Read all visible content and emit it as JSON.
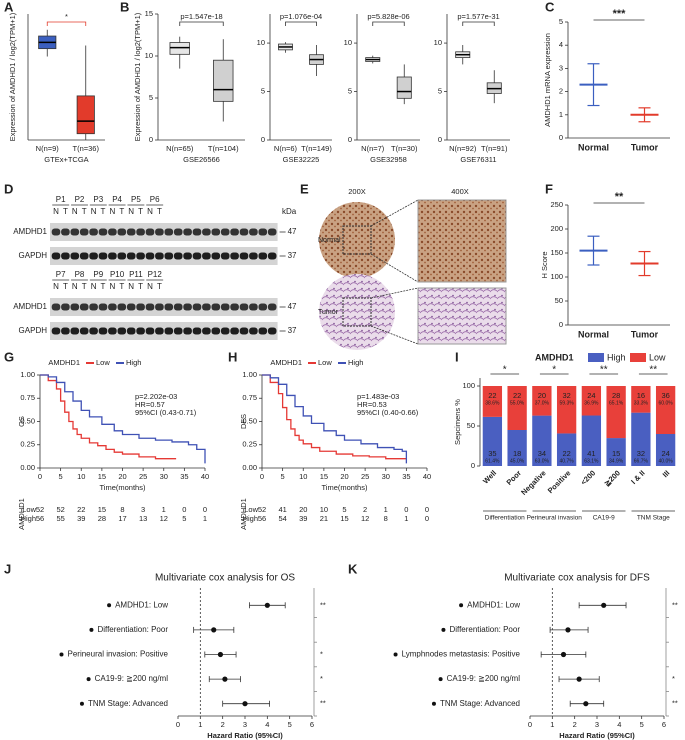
{
  "chart_data": [
    {
      "type": "box",
      "panel": "A",
      "ylabel": "Expression of AMDHD1 / log2(TPM+1)",
      "xlabel": "GTEx+TCGA",
      "categories": [
        "N(n=9)",
        "T(n=36)"
      ],
      "box_colors": [
        "#3b5fc0",
        "#e23b2b"
      ],
      "ylim": [
        0,
        8
      ],
      "boxes": [
        {
          "low": 5.3,
          "q1": 5.8,
          "median": 6.2,
          "q3": 6.6,
          "high": 7.0
        },
        {
          "low": 0.0,
          "q1": 0.4,
          "median": 1.2,
          "q3": 2.8,
          "high": 6.0
        }
      ],
      "annotation": "*",
      "annotation_color": "#e23b2b"
    },
    {
      "type": "box",
      "panel": "B",
      "ylabel": "Expression of AMDHD1 / log2(TPM+1)",
      "xlabel": "GSE26566",
      "categories": [
        "N(n=65)",
        "T(n=104)"
      ],
      "box_colors": [
        "#e6e6e6",
        "#d0d0d0"
      ],
      "ylim": [
        0,
        15
      ],
      "yticks": [
        0,
        5,
        10,
        15
      ],
      "boxes": [
        {
          "low": 8.5,
          "q1": 10.2,
          "median": 11.0,
          "q3": 11.6,
          "high": 12.3
        },
        {
          "low": 2.2,
          "q1": 4.6,
          "median": 6.0,
          "q3": 9.5,
          "high": 12.0
        }
      ],
      "annotation": "p=1.547e-18"
    },
    {
      "type": "box",
      "xlabel": "GSE32225",
      "categories": [
        "N(n=6)",
        "T(n=149)"
      ],
      "box_colors": [
        "#e6e6e6",
        "#d0d0d0"
      ],
      "ylim": [
        0,
        13
      ],
      "yticks": [
        0,
        5,
        10
      ],
      "boxes": [
        {
          "low": 9.0,
          "q1": 9.3,
          "median": 9.6,
          "q3": 9.9,
          "high": 10.1
        },
        {
          "low": 6.6,
          "q1": 7.8,
          "median": 8.3,
          "q3": 8.8,
          "high": 9.8
        }
      ],
      "annotation": "p=1.076e-04"
    },
    {
      "type": "box",
      "xlabel": "GSE32958",
      "categories": [
        "N(n=7)",
        "T(n=30)"
      ],
      "box_colors": [
        "#e6e6e6",
        "#d0d0d0"
      ],
      "ylim": [
        0,
        13
      ],
      "yticks": [
        0,
        5,
        10
      ],
      "boxes": [
        {
          "low": 7.9,
          "q1": 8.1,
          "median": 8.3,
          "q3": 8.5,
          "high": 8.7
        },
        {
          "low": 3.7,
          "q1": 4.3,
          "median": 5.0,
          "q3": 6.5,
          "high": 7.8
        }
      ],
      "annotation": "p=5.828e-06"
    },
    {
      "type": "box",
      "xlabel": "GSE76311",
      "categories": [
        "N(n=92)",
        "T(n=91)"
      ],
      "box_colors": [
        "#e6e6e6",
        "#d0d0d0"
      ],
      "ylim": [
        0,
        13
      ],
      "yticks": [
        0,
        5,
        10
      ],
      "boxes": [
        {
          "low": 7.8,
          "q1": 8.5,
          "median": 8.8,
          "q3": 9.1,
          "high": 9.8
        },
        {
          "low": 3.8,
          "q1": 4.8,
          "median": 5.3,
          "q3": 5.9,
          "high": 7.2
        }
      ],
      "annotation": "p=1.577e-31"
    },
    {
      "type": "dot",
      "panel": "C",
      "ylabel": "AMDHD1 mRNA expression",
      "categories": [
        "Normal",
        "Tumor"
      ],
      "colors": [
        "#3b5fc0",
        "#e23b2b"
      ],
      "means": [
        2.3,
        1.0
      ],
      "sds": [
        0.9,
        0.3
      ],
      "ylim": [
        0,
        5
      ],
      "yticks": [
        0,
        1,
        2,
        3,
        4,
        5
      ],
      "annotation": "***"
    },
    {
      "type": "blot",
      "panel": "D",
      "groups": [
        {
          "samples": [
            "P1",
            "P2",
            "P3",
            "P4",
            "P5",
            "P6"
          ]
        },
        {
          "samples": [
            "P7",
            "P8",
            "P9",
            "P10",
            "P11",
            "P12"
          ]
        }
      ],
      "lanes": [
        "N",
        "T"
      ],
      "proteins": [
        "AMDHD1",
        "GAPDH"
      ],
      "unit": "kDa",
      "sizes": [
        47,
        37
      ]
    },
    {
      "type": "image",
      "panel": "E",
      "magnifications": [
        "200X",
        "400X"
      ],
      "rows": [
        "Normal",
        "Tumor"
      ]
    },
    {
      "type": "dot",
      "panel": "F",
      "ylabel": "H Score",
      "categories": [
        "Normal",
        "Tumor"
      ],
      "colors": [
        "#3b5fc0",
        "#e23b2b"
      ],
      "means": [
        155,
        128
      ],
      "sds": [
        30,
        25
      ],
      "ylim": [
        0,
        250
      ],
      "yticks": [
        0,
        50,
        100,
        150,
        200,
        250
      ],
      "annotation": "**"
    },
    {
      "type": "km",
      "panel": "G",
      "ylabel": "OS",
      "xlabel": "Time(months)",
      "legend_title": "AMDHD1",
      "xlim": [
        0,
        40
      ],
      "xticks": [
        0,
        5,
        10,
        15,
        20,
        25,
        30,
        35,
        40
      ],
      "ylim": [
        0,
        1
      ],
      "yticks": [
        {
          "value": 0,
          "label": "0.00"
        },
        {
          "value": 0.25,
          "label": "0.25"
        },
        {
          "value": 0.5,
          "label": "0.50"
        },
        {
          "value": 0.75,
          "label": "0.75"
        },
        {
          "value": 1,
          "label": "1.00"
        }
      ],
      "stats": [
        "p=2.202e-03",
        "HR=0.57",
        "95%CI (0.43-0.71)"
      ],
      "series": [
        {
          "name": "Low",
          "color": "#e53935",
          "x": [
            0,
            2,
            4,
            5,
            6,
            7,
            8,
            9,
            10,
            12,
            14,
            16,
            18,
            20,
            24,
            28,
            33
          ],
          "y": [
            1,
            0.94,
            0.85,
            0.72,
            0.6,
            0.5,
            0.42,
            0.36,
            0.32,
            0.27,
            0.24,
            0.2,
            0.17,
            0.15,
            0.12,
            0.1,
            0.1
          ],
          "at_risk": [
            52,
            52,
            22,
            15,
            8,
            3,
            1,
            0,
            0
          ]
        },
        {
          "name": "High",
          "color": "#3f51b5",
          "x": [
            0,
            2,
            4,
            6,
            8,
            10,
            12,
            15,
            18,
            20,
            24,
            28,
            32,
            36,
            38,
            40
          ],
          "y": [
            1,
            0.98,
            0.92,
            0.82,
            0.72,
            0.62,
            0.55,
            0.47,
            0.4,
            0.36,
            0.32,
            0.3,
            0.28,
            0.25,
            0.2,
            0.05
          ],
          "at_risk": [
            56,
            55,
            39,
            28,
            17,
            13,
            12,
            5,
            1
          ]
        }
      ]
    },
    {
      "type": "km",
      "panel": "H",
      "ylabel": "DFS",
      "xlabel": "Time(months)",
      "legend_title": "AMDHD1",
      "xlim": [
        0,
        40
      ],
      "xticks": [
        0,
        5,
        10,
        15,
        20,
        25,
        30,
        35,
        40
      ],
      "ylim": [
        0,
        1
      ],
      "yticks": [
        {
          "value": 0,
          "label": "0.00"
        },
        {
          "value": 0.25,
          "label": "0.25"
        },
        {
          "value": 0.5,
          "label": "0.50"
        },
        {
          "value": 0.75,
          "label": "0.75"
        },
        {
          "value": 1,
          "label": "1.00"
        }
      ],
      "stats": [
        "p=1.483e-03",
        "HR=0.53",
        "95%CI (0.40-0.66)"
      ],
      "series": [
        {
          "name": "Low",
          "color": "#e53935",
          "x": [
            0,
            2,
            4,
            5,
            6,
            7,
            8,
            9,
            10,
            12,
            14,
            18,
            22,
            26,
            30,
            35
          ],
          "y": [
            1,
            0.92,
            0.8,
            0.65,
            0.52,
            0.42,
            0.35,
            0.3,
            0.26,
            0.22,
            0.18,
            0.15,
            0.13,
            0.12,
            0.1,
            0.1
          ],
          "at_risk": [
            52,
            41,
            20,
            10,
            5,
            2,
            1,
            0,
            0
          ]
        },
        {
          "name": "High",
          "color": "#3f51b5",
          "x": [
            0,
            2,
            4,
            6,
            8,
            10,
            12,
            15,
            18,
            20,
            24,
            28,
            32,
            34,
            35
          ],
          "y": [
            1,
            0.97,
            0.9,
            0.78,
            0.66,
            0.56,
            0.48,
            0.4,
            0.35,
            0.3,
            0.26,
            0.22,
            0.2,
            0.18,
            0.05
          ],
          "at_risk": [
            56,
            54,
            39,
            21,
            15,
            12,
            8,
            1,
            0
          ]
        }
      ]
    },
    {
      "type": "stacked",
      "panel": "I",
      "title": "AMDHD1",
      "ylabel": "Sepcimens %",
      "ylim": [
        0,
        110
      ],
      "yticks": [
        0,
        50,
        100
      ],
      "categories": [
        "Well",
        "Poor",
        "Negative",
        "Positive",
        "<200",
        "≧200",
        "I & II",
        "III"
      ],
      "groups": [
        {
          "name": "Differentiation",
          "sig": "*"
        },
        {
          "name": "Perineural invasion",
          "sig": "*"
        },
        {
          "name": "CA19-9",
          "sig": "**"
        },
        {
          "name": "TNM Stage",
          "sig": "**"
        }
      ],
      "series": [
        {
          "name": "High",
          "color": "#4a5fc1",
          "values": [
            61.4,
            45.0,
            63.0,
            40.7,
            63.1,
            34.9,
            66.7,
            40.0
          ],
          "value_labels": [
            "61.4%",
            "45.0%",
            "63.0%",
            "40.7%",
            "63.1%",
            "34.9%",
            "66.7%",
            "40.0%"
          ],
          "counts": [
            35,
            18,
            34,
            22,
            41,
            15,
            32,
            24
          ]
        },
        {
          "name": "Low",
          "color": "#e8403a",
          "values": [
            38.6,
            55.0,
            37.0,
            59.3,
            36.9,
            65.1,
            33.3,
            60.0
          ],
          "value_labels": [
            "38.6%",
            "55.0%",
            "37.0%",
            "59.3%",
            "36.9%",
            "65.1%",
            "33.3%",
            "60.0%"
          ],
          "counts": [
            22,
            22,
            20,
            32,
            24,
            28,
            16,
            36
          ]
        }
      ]
    },
    {
      "type": "forest",
      "panel": "J",
      "title": "Multivariate cox analysis for OS",
      "xlabel": "Hazard Ratio (95%CI)",
      "xlim": [
        0,
        6
      ],
      "xticks": [
        0,
        1,
        2,
        3,
        4,
        5,
        6
      ],
      "reference_line": 1,
      "labels": [
        "AMDHD1: Low",
        "Differentiation: Poor",
        "Perineural invasion: Positive",
        "CA19-9: ≧200 ng/ml",
        "TNM Stage: Advanced"
      ],
      "hr": [
        4.0,
        1.6,
        1.9,
        2.1,
        3.0
      ],
      "lo": [
        3.2,
        0.7,
        1.2,
        1.4,
        2.0
      ],
      "hi": [
        4.8,
        2.5,
        2.6,
        2.8,
        4.1
      ],
      "sig": [
        "**",
        null,
        "*",
        "*",
        "**"
      ]
    },
    {
      "type": "forest",
      "panel": "K",
      "title": "Multivariate cox analysis for DFS",
      "xlabel": "Hazard Ratio (95%CI)",
      "xlim": [
        0,
        6
      ],
      "xticks": [
        0,
        1,
        2,
        3,
        4,
        5,
        6
      ],
      "reference_line": 1,
      "labels": [
        "AMDHD1: Low",
        "Differentiation: Poor",
        "Lymphnodes metastasis: Positive",
        "CA19-9: ≧200 ng/ml",
        "TNM Stage: Advanced"
      ],
      "hr": [
        3.3,
        1.7,
        1.5,
        2.2,
        2.5
      ],
      "lo": [
        2.2,
        0.9,
        0.5,
        1.3,
        1.8
      ],
      "hi": [
        4.3,
        2.6,
        2.5,
        3.1,
        3.3
      ],
      "sig": [
        "**",
        null,
        null,
        "*",
        "**"
      ]
    }
  ]
}
